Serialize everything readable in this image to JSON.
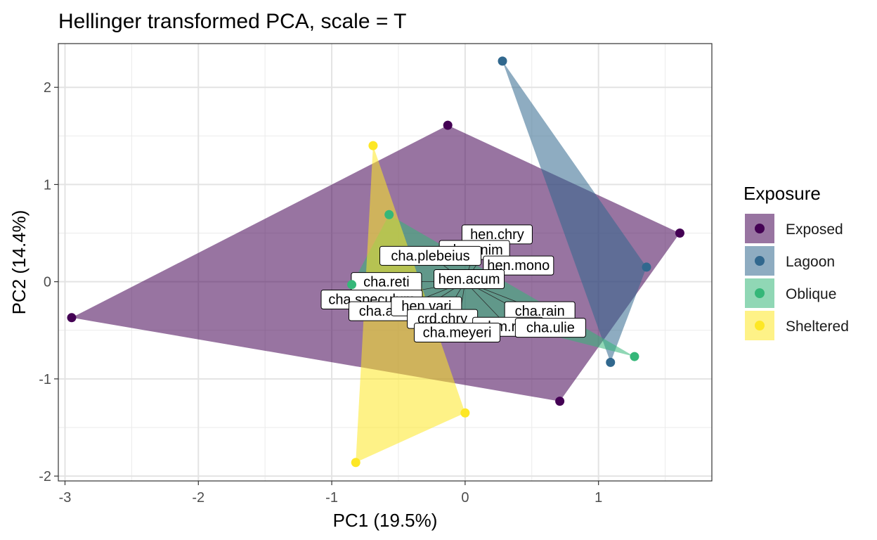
{
  "chart_data": {
    "type": "scatter",
    "title": "Hellinger transformed PCA, scale = T",
    "xlabel": "PC1 (19.5%)",
    "ylabel": "PC2 (14.4%)",
    "xlim": [
      -3.05,
      1.85
    ],
    "ylim": [
      -2.05,
      2.45
    ],
    "x_ticks": [
      -3,
      -2,
      -1,
      0,
      1
    ],
    "y_ticks": [
      -2,
      -1,
      0,
      1,
      2
    ],
    "x_tick_labels": [
      "-3",
      "-2",
      "-1",
      "0",
      "1"
    ],
    "y_tick_labels": [
      "-2",
      "-1",
      "0",
      "1",
      "2"
    ],
    "grid": true,
    "legend": {
      "title": "Exposure",
      "placement": "right"
    },
    "series": [
      {
        "name": "Exposed",
        "color": "#440154",
        "points": [
          {
            "x": -2.95,
            "y": -0.37
          },
          {
            "x": -0.13,
            "y": 1.61
          },
          {
            "x": 1.61,
            "y": 0.5
          },
          {
            "x": 0.71,
            "y": -1.23
          }
        ]
      },
      {
        "name": "Lagoon",
        "color": "#31688E",
        "points": [
          {
            "x": 0.28,
            "y": 2.27
          },
          {
            "x": 1.36,
            "y": 0.15
          },
          {
            "x": 1.09,
            "y": -0.83
          }
        ]
      },
      {
        "name": "Oblique",
        "color": "#35B779",
        "points": [
          {
            "x": -0.57,
            "y": 0.69
          },
          {
            "x": 1.27,
            "y": -0.77
          },
          {
            "x": -0.85,
            "y": -0.03
          }
        ]
      },
      {
        "name": "Sheltered",
        "color": "#FDE725",
        "points": [
          {
            "x": -0.69,
            "y": 1.4
          },
          {
            "x": 0.0,
            "y": -1.35
          },
          {
            "x": -0.82,
            "y": -1.86
          }
        ]
      }
    ],
    "species_labels": [
      {
        "text": "hen.chry",
        "x": 0.24,
        "y": 0.49
      },
      {
        "text": "cha.unim",
        "x": 0.07,
        "y": 0.33
      },
      {
        "text": "cha.plebeius",
        "x": -0.26,
        "y": 0.27
      },
      {
        "text": "hen.mono",
        "x": 0.4,
        "y": 0.17
      },
      {
        "text": "hen.acum",
        "x": 0.03,
        "y": 0.03
      },
      {
        "text": "cha.reti",
        "x": -0.59,
        "y": 0.0
      },
      {
        "text": "cha.speculum",
        "x": -0.7,
        "y": -0.18
      },
      {
        "text": "cha.auriga",
        "x": -0.55,
        "y": -0.3
      },
      {
        "text": "hen.vari",
        "x": -0.29,
        "y": -0.25
      },
      {
        "text": "cha.rain",
        "x": 0.56,
        "y": -0.3
      },
      {
        "text": "crd.chry",
        "x": -0.17,
        "y": -0.38
      },
      {
        "text": "chm.rost",
        "x": 0.32,
        "y": -0.46
      },
      {
        "text": "cha.ulie",
        "x": 0.64,
        "y": -0.47
      },
      {
        "text": "cha.meyeri",
        "x": -0.06,
        "y": -0.52
      }
    ]
  }
}
